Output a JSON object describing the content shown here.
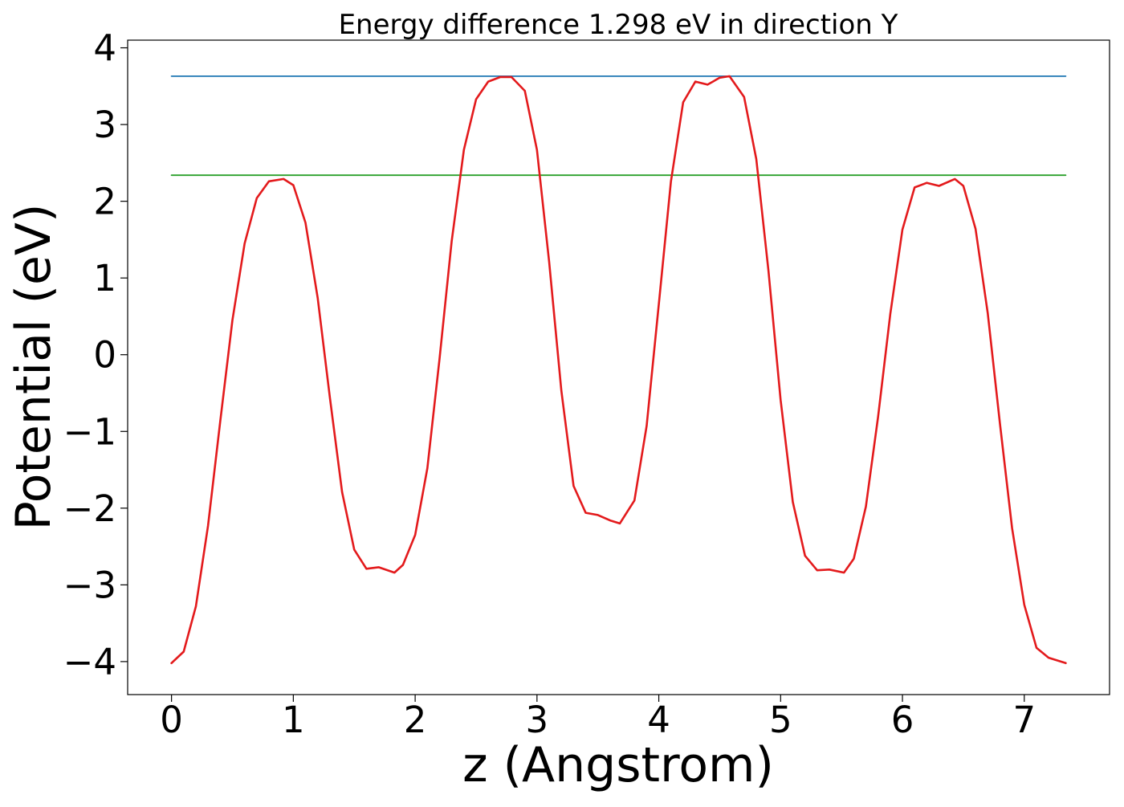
{
  "chart_data": {
    "type": "line",
    "title": "Energy difference 1.298 eV in direction Y",
    "xlabel": "z (Angstrom)",
    "ylabel": "Potential (eV)",
    "xlim": [
      -0.36,
      7.7
    ],
    "ylim": [
      -4.43,
      4.1
    ],
    "xticks": [
      0,
      1,
      2,
      3,
      4,
      5,
      6,
      7
    ],
    "xtick_labels": [
      "0",
      "1",
      "2",
      "3",
      "4",
      "5",
      "6",
      "7"
    ],
    "yticks": [
      -4,
      -3,
      -2,
      -1,
      0,
      1,
      2,
      3,
      4
    ],
    "ytick_labels": [
      "−4",
      "−3",
      "−2",
      "−1",
      "0",
      "1",
      "2",
      "3",
      "4"
    ],
    "grid": false,
    "series": [
      {
        "color": "#1f77b4",
        "x": [
          0,
          7.34
        ],
        "y": [
          3.63,
          3.63
        ]
      },
      {
        "color": "#2ca02c",
        "x": [
          0,
          7.34
        ],
        "y": [
          2.34,
          2.34
        ]
      },
      {
        "color": "#e31a1c",
        "x": [
          0,
          0.1,
          0.2,
          0.3,
          0.4,
          0.5,
          0.6,
          0.7,
          0.8,
          0.92,
          1.0,
          1.1,
          1.2,
          1.3,
          1.4,
          1.5,
          1.6,
          1.7,
          1.83,
          1.9,
          2.0,
          2.1,
          2.2,
          2.3,
          2.4,
          2.5,
          2.6,
          2.7,
          2.79,
          2.9,
          3.0,
          3.1,
          3.2,
          3.3,
          3.4,
          3.5,
          3.6,
          3.68,
          3.8,
          3.9,
          4.0,
          4.1,
          4.2,
          4.3,
          4.4,
          4.5,
          4.58,
          4.7,
          4.8,
          4.9,
          5.0,
          5.1,
          5.2,
          5.3,
          5.4,
          5.52,
          5.6,
          5.7,
          5.8,
          5.9,
          6.0,
          6.1,
          6.2,
          6.3,
          6.43,
          6.5,
          6.6,
          6.7,
          6.8,
          6.9,
          7.0,
          7.1,
          7.2,
          7.34
        ],
        "y": [
          -4.02,
          -3.87,
          -3.28,
          -2.23,
          -0.87,
          0.45,
          1.45,
          2.04,
          2.26,
          2.29,
          2.21,
          1.72,
          0.74,
          -0.56,
          -1.79,
          -2.54,
          -2.79,
          -2.77,
          -2.84,
          -2.74,
          -2.35,
          -1.48,
          -0.06,
          1.48,
          2.67,
          3.33,
          3.56,
          3.62,
          3.62,
          3.44,
          2.67,
          1.21,
          -0.47,
          -1.71,
          -2.06,
          -2.09,
          -2.16,
          -2.2,
          -1.9,
          -0.93,
          0.66,
          2.26,
          3.29,
          3.56,
          3.52,
          3.61,
          3.63,
          3.36,
          2.55,
          1.1,
          -0.59,
          -1.92,
          -2.62,
          -2.81,
          -2.8,
          -2.84,
          -2.66,
          -1.98,
          -0.81,
          0.53,
          1.63,
          2.18,
          2.24,
          2.2,
          2.29,
          2.2,
          1.64,
          0.54,
          -0.89,
          -2.26,
          -3.26,
          -3.82,
          -3.95,
          -4.02
        ]
      }
    ]
  }
}
